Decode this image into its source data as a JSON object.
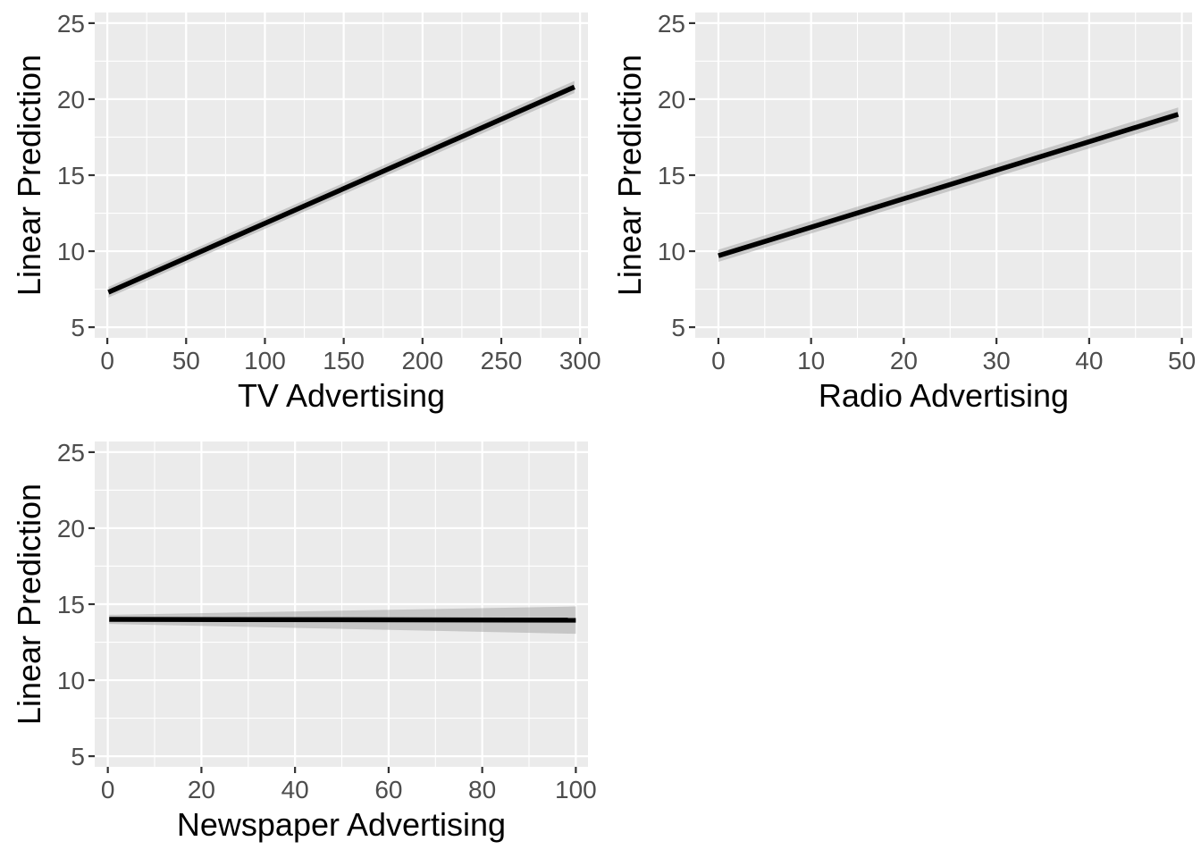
{
  "chart_data": [
    {
      "type": "line",
      "xlabel": "TV Advertising",
      "ylabel": "Linear Prediction",
      "xlim": [
        -8,
        305
      ],
      "ylim": [
        4.3,
        25.7
      ],
      "xticks": [
        0,
        50,
        100,
        150,
        200,
        250,
        300
      ],
      "yticks": [
        5,
        10,
        15,
        20,
        25
      ],
      "grid": true,
      "series": [
        {
          "x": [
            0.7,
            296.4
          ],
          "y": [
            7.3,
            20.8
          ],
          "lower": [
            6.95,
            20.4
          ],
          "upper": [
            7.65,
            21.2
          ]
        }
      ]
    },
    {
      "type": "line",
      "xlabel": "Radio Advertising",
      "ylabel": "Linear Prediction",
      "xlim": [
        -2.5,
        51.1
      ],
      "ylim": [
        4.3,
        25.7
      ],
      "xticks": [
        0,
        10,
        20,
        30,
        40,
        50
      ],
      "yticks": [
        5,
        10,
        15,
        20,
        25
      ],
      "grid": true,
      "series": [
        {
          "x": [
            0,
            49.6
          ],
          "y": [
            9.7,
            19.0
          ],
          "lower": [
            9.3,
            18.55
          ],
          "upper": [
            10.1,
            19.45
          ]
        }
      ]
    },
    {
      "type": "line",
      "xlabel": "Newspaper Advertising",
      "ylabel": "Linear Prediction",
      "xlim": [
        -2.8,
        102.6
      ],
      "ylim": [
        4.3,
        25.7
      ],
      "xticks": [
        0,
        20,
        40,
        60,
        80,
        100
      ],
      "yticks": [
        5,
        10,
        15,
        20,
        25
      ],
      "grid": true,
      "series": [
        {
          "x": [
            0.3,
            100
          ],
          "y": [
            14.0,
            13.95
          ],
          "lower": [
            13.7,
            13.05
          ],
          "upper": [
            14.3,
            14.85
          ]
        }
      ]
    }
  ]
}
